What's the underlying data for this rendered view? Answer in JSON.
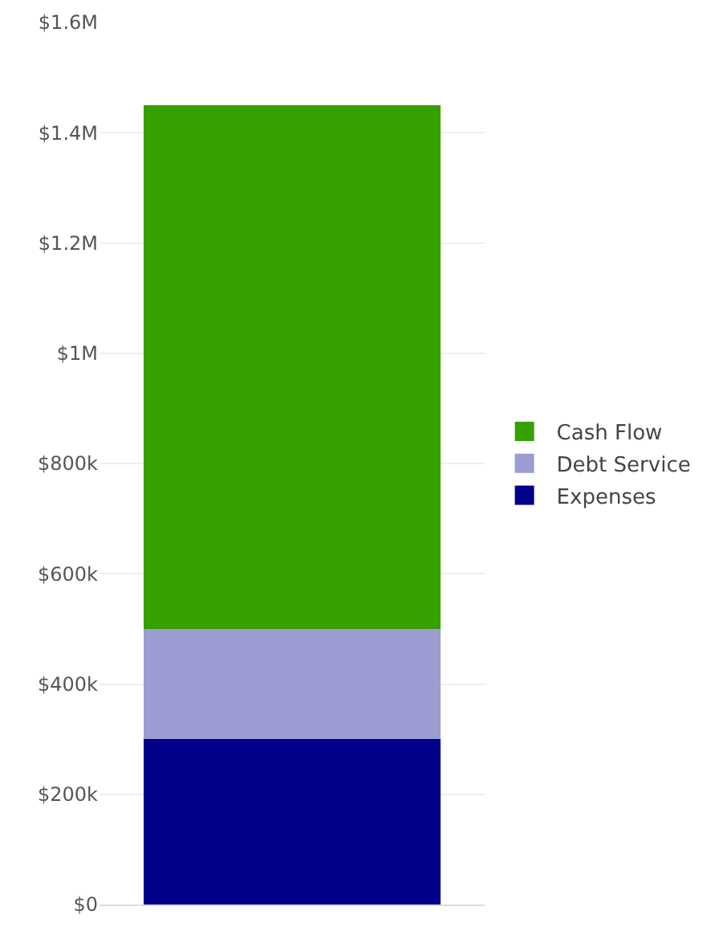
{
  "chart_data": {
    "type": "bar",
    "stacked": true,
    "categories": [
      null
    ],
    "series": [
      {
        "name": "Expenses",
        "color": "#00008b",
        "values": [
          300000
        ]
      },
      {
        "name": "Debt Service",
        "color": "#9b9dd2",
        "values": [
          200000
        ]
      },
      {
        "name": "Cash Flow",
        "color": "#36a000",
        "values": [
          950000
        ]
      }
    ],
    "ylim": [
      0,
      1600000
    ],
    "yticks": [
      {
        "value": 0,
        "label": "$0"
      },
      {
        "value": 200000,
        "label": "$200k"
      },
      {
        "value": 400000,
        "label": "$400k"
      },
      {
        "value": 600000,
        "label": "$600k"
      },
      {
        "value": 800000,
        "label": "$800k"
      },
      {
        "value": 1000000,
        "label": "$1M"
      },
      {
        "value": 1200000,
        "label": "$1.2M"
      },
      {
        "value": 1400000,
        "label": "$1.4M"
      },
      {
        "value": 1600000,
        "label": "$1.6M"
      }
    ],
    "grid": "y",
    "legend": "right"
  }
}
